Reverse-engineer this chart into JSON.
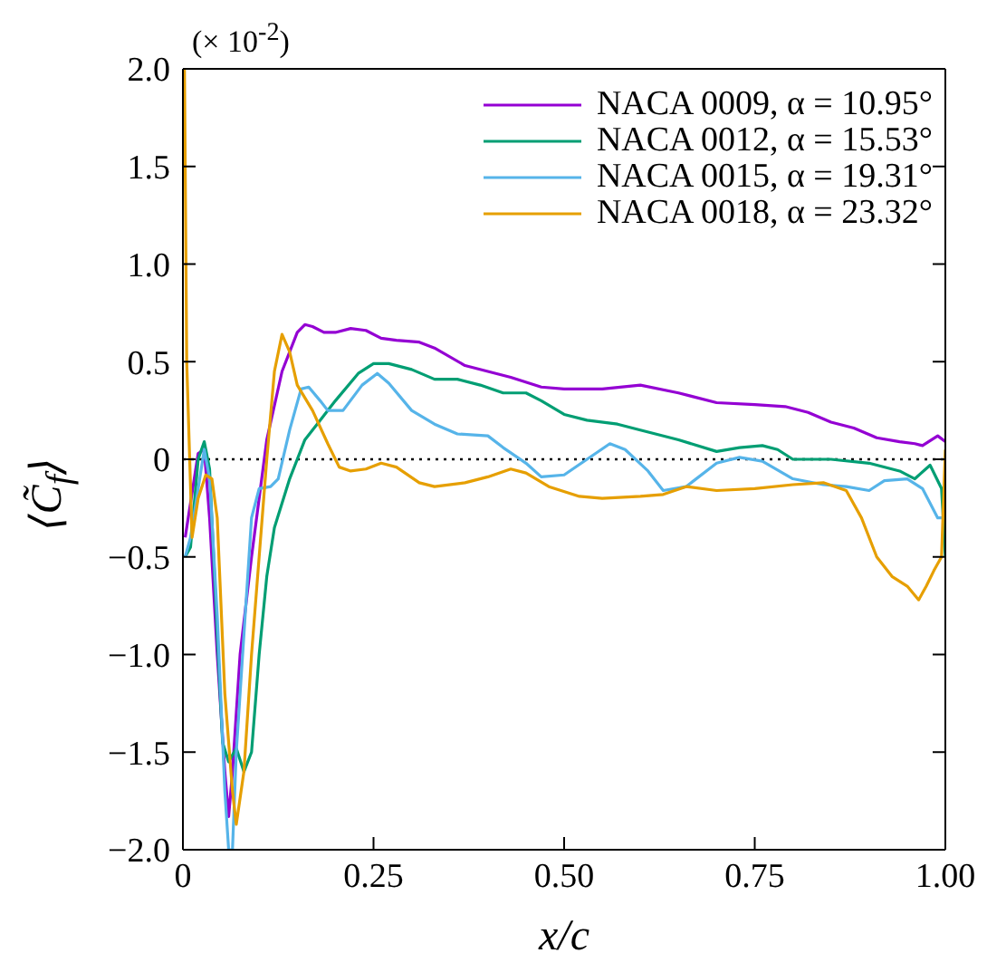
{
  "chart_data": {
    "type": "line",
    "xlabel": "x/c",
    "ylabel": "⟨C̃$_{f}$⟩",
    "annotations": [
      "(× 10$^{-2}$)"
    ],
    "xlim": [
      0,
      1
    ],
    "xticks": [
      0,
      {
        "value": 0.25,
        "label": "0.25"
      },
      {
        "value": 0.5,
        "label": "0.50"
      },
      {
        "value": 0.75,
        "label": "0.75"
      },
      {
        "value": 1,
        "label": "1.00"
      }
    ],
    "ylim": [
      -2,
      2
    ],
    "yticks": [
      {
        "value": -2,
        "label": "−2.0"
      },
      {
        "value": -1.5,
        "label": "−1.5"
      },
      {
        "value": -1,
        "label": "−1.0"
      },
      {
        "value": -0.5,
        "label": "−0.5"
      },
      0,
      {
        "value": 0.5,
        "label": "0.5"
      },
      {
        "value": 1,
        "label": "1.0"
      },
      {
        "value": 1.5,
        "label": "1.5"
      },
      {
        "value": 2,
        "label": "2.0"
      }
    ],
    "legend": "top right",
    "marker": "none",
    "line_style": "solid",
    "ref_lines": [
      {
        "axis": "y",
        "value": 0,
        "color": "#000000",
        "line_style": "dotted"
      }
    ],
    "series": [
      {
        "name": "NACA 0009, α = 10.95°",
        "color": "#9400d3",
        "x": [
          0.003,
          0.02,
          0.028,
          0.035,
          0.045,
          0.055,
          0.06,
          0.065,
          0.075,
          0.09,
          0.11,
          0.13,
          0.15,
          0.16,
          0.17,
          0.185,
          0.2,
          0.22,
          0.24,
          0.26,
          0.28,
          0.31,
          0.33,
          0.37,
          0.4,
          0.43,
          0.47,
          0.5,
          0.55,
          0.6,
          0.65,
          0.7,
          0.75,
          0.79,
          0.82,
          0.85,
          0.88,
          0.91,
          0.94,
          0.96,
          0.97,
          0.99,
          1.0
        ],
        "values": [
          -0.4,
          0.03,
          0.05,
          -0.3,
          -1.0,
          -1.6,
          -1.83,
          -1.6,
          -1.0,
          -0.5,
          0.1,
          0.45,
          0.65,
          0.69,
          0.68,
          0.65,
          0.65,
          0.67,
          0.66,
          0.62,
          0.61,
          0.6,
          0.57,
          0.48,
          0.45,
          0.42,
          0.37,
          0.36,
          0.36,
          0.38,
          0.34,
          0.29,
          0.28,
          0.27,
          0.24,
          0.19,
          0.16,
          0.11,
          0.09,
          0.08,
          0.07,
          0.12,
          0.09
        ]
      },
      {
        "name": "NACA 0012, α = 15.53°",
        "color": "#009e73",
        "x": [
          0.003,
          0.01,
          0.02,
          0.028,
          0.035,
          0.045,
          0.052,
          0.06,
          0.07,
          0.08,
          0.09,
          0.1,
          0.11,
          0.12,
          0.14,
          0.16,
          0.18,
          0.2,
          0.23,
          0.25,
          0.27,
          0.3,
          0.33,
          0.36,
          0.39,
          0.42,
          0.45,
          0.47,
          0.5,
          0.53,
          0.57,
          0.6,
          0.65,
          0.7,
          0.73,
          0.76,
          0.78,
          0.8,
          0.85,
          0.9,
          0.94,
          0.96,
          0.98,
          0.995,
          1.0
        ],
        "values": [
          -0.5,
          -0.45,
          0.0,
          0.09,
          -0.05,
          -0.9,
          -1.45,
          -1.55,
          -1.48,
          -1.6,
          -1.5,
          -1.0,
          -0.6,
          -0.35,
          -0.1,
          0.1,
          0.2,
          0.3,
          0.44,
          0.49,
          0.49,
          0.46,
          0.41,
          0.41,
          0.38,
          0.34,
          0.34,
          0.3,
          0.23,
          0.2,
          0.18,
          0.15,
          0.1,
          0.04,
          0.06,
          0.07,
          0.05,
          0.0,
          0.0,
          -0.02,
          -0.06,
          -0.1,
          -0.03,
          -0.15,
          -0.5
        ]
      },
      {
        "name": "NACA 0015, α = 19.31°",
        "color": "#56b4e9",
        "x": [
          0.003,
          0.01,
          0.02,
          0.028,
          0.035,
          0.045,
          0.055,
          0.06,
          0.065,
          0.07,
          0.08,
          0.09,
          0.1,
          0.115,
          0.125,
          0.14,
          0.155,
          0.165,
          0.18,
          0.19,
          0.21,
          0.235,
          0.255,
          0.27,
          0.3,
          0.33,
          0.36,
          0.4,
          0.42,
          0.45,
          0.47,
          0.5,
          0.53,
          0.56,
          0.58,
          0.61,
          0.63,
          0.66,
          0.7,
          0.73,
          0.76,
          0.8,
          0.84,
          0.87,
          0.9,
          0.92,
          0.95,
          0.97,
          0.99,
          1.0
        ],
        "values": [
          -0.5,
          -0.4,
          -0.15,
          0.05,
          -0.1,
          -0.8,
          -1.7,
          -2.0,
          -2.0,
          -1.5,
          -0.9,
          -0.3,
          -0.15,
          -0.14,
          -0.1,
          0.15,
          0.36,
          0.37,
          0.3,
          0.25,
          0.25,
          0.38,
          0.44,
          0.39,
          0.25,
          0.18,
          0.13,
          0.12,
          0.06,
          -0.02,
          -0.09,
          -0.08,
          0.0,
          0.08,
          0.05,
          -0.06,
          -0.16,
          -0.14,
          -0.02,
          0.01,
          -0.01,
          -0.1,
          -0.13,
          -0.14,
          -0.16,
          -0.11,
          -0.1,
          -0.15,
          -0.3,
          -0.3
        ]
      },
      {
        "name": "NACA 0018, α = 23.32°",
        "color": "#e69f00",
        "x": [
          0.002,
          0.005,
          0.012,
          0.02,
          0.03,
          0.038,
          0.045,
          0.055,
          0.065,
          0.07,
          0.08,
          0.09,
          0.1,
          0.11,
          0.12,
          0.13,
          0.14,
          0.15,
          0.17,
          0.19,
          0.205,
          0.22,
          0.24,
          0.26,
          0.28,
          0.31,
          0.33,
          0.37,
          0.4,
          0.43,
          0.45,
          0.48,
          0.52,
          0.55,
          0.6,
          0.63,
          0.66,
          0.7,
          0.75,
          0.8,
          0.84,
          0.87,
          0.89,
          0.91,
          0.93,
          0.95,
          0.965,
          0.975,
          0.985,
          0.995,
          1.0
        ],
        "values": [
          2.0,
          0.5,
          -0.4,
          -0.2,
          -0.08,
          -0.1,
          -0.3,
          -1.2,
          -1.7,
          -1.87,
          -1.6,
          -1.0,
          -0.5,
          0.0,
          0.45,
          0.64,
          0.55,
          0.38,
          0.25,
          0.08,
          -0.04,
          -0.06,
          -0.05,
          -0.02,
          -0.04,
          -0.12,
          -0.14,
          -0.12,
          -0.09,
          -0.05,
          -0.07,
          -0.14,
          -0.19,
          -0.2,
          -0.19,
          -0.18,
          -0.14,
          -0.16,
          -0.15,
          -0.13,
          -0.12,
          -0.16,
          -0.3,
          -0.5,
          -0.6,
          -0.65,
          -0.72,
          -0.65,
          -0.57,
          -0.5,
          0.05
        ]
      }
    ]
  }
}
